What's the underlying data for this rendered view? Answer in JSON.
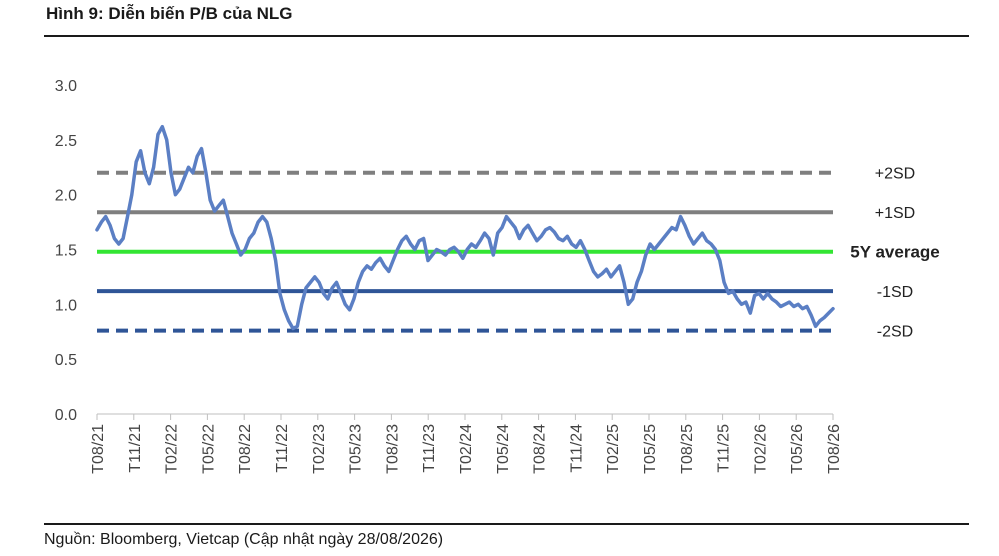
{
  "header": {
    "title": "Hình 9: Diễn biến P/B của NLG"
  },
  "footer": {
    "source": "Nguồn: Bloomberg, Vietcap (Cập nhật ngày 28/08/2026)"
  },
  "chart_data": {
    "type": "line",
    "title": "Hình 9: Diễn biến P/B của NLG",
    "ylim": [
      0,
      3
    ],
    "yticks": [
      "0.0",
      "0.5",
      "1.0",
      "1.5",
      "2.0",
      "2.5",
      "3.0"
    ],
    "grid": false,
    "xticks": [
      "T08/21",
      "T11/21",
      "T02/22",
      "T05/22",
      "T08/22",
      "T11/22",
      "T02/23",
      "T05/23",
      "T08/23",
      "T11/23",
      "T02/24",
      "T05/24",
      "T08/24",
      "T11/24",
      "T02/25",
      "T05/25",
      "T08/25",
      "T11/25",
      "T02/26",
      "T05/26",
      "T08/26"
    ],
    "series": [
      {
        "values": [
          1.68,
          1.75,
          1.8,
          1.72,
          1.6,
          1.55,
          1.6,
          1.8,
          2.0,
          2.3,
          2.4,
          2.2,
          2.1,
          2.25,
          2.55,
          2.62,
          2.5,
          2.2,
          2.0,
          2.05,
          2.15,
          2.25,
          2.2,
          2.35,
          2.42,
          2.2,
          1.95,
          1.85,
          1.9,
          1.95,
          1.8,
          1.65,
          1.55,
          1.45,
          1.5,
          1.6,
          1.65,
          1.75,
          1.8,
          1.75,
          1.6,
          1.4,
          1.1,
          0.95,
          0.85,
          0.78,
          0.8,
          1.0,
          1.15,
          1.2,
          1.25,
          1.2,
          1.1,
          1.05,
          1.15,
          1.2,
          1.1,
          1.0,
          0.95,
          1.05,
          1.2,
          1.3,
          1.35,
          1.32,
          1.38,
          1.42,
          1.35,
          1.3,
          1.4,
          1.5,
          1.58,
          1.62,
          1.55,
          1.5,
          1.58,
          1.6,
          1.4,
          1.45,
          1.5,
          1.48,
          1.45,
          1.5,
          1.52,
          1.48,
          1.42,
          1.5,
          1.55,
          1.52,
          1.58,
          1.65,
          1.6,
          1.45,
          1.65,
          1.7,
          1.8,
          1.75,
          1.7,
          1.6,
          1.68,
          1.72,
          1.65,
          1.58,
          1.62,
          1.68,
          1.7,
          1.66,
          1.6,
          1.58,
          1.62,
          1.55,
          1.52,
          1.58,
          1.5,
          1.4,
          1.3,
          1.25,
          1.28,
          1.32,
          1.25,
          1.3,
          1.35,
          1.2,
          1.0,
          1.05,
          1.2,
          1.3,
          1.45,
          1.55,
          1.5,
          1.55,
          1.6,
          1.65,
          1.7,
          1.68,
          1.8,
          1.72,
          1.62,
          1.55,
          1.6,
          1.65,
          1.58,
          1.55,
          1.5,
          1.4,
          1.2,
          1.1,
          1.12,
          1.05,
          1.0,
          1.02,
          0.92,
          1.08,
          1.1,
          1.05,
          1.1,
          1.05,
          1.02,
          0.98,
          1.0,
          1.02,
          0.98,
          1.0,
          0.96,
          0.98,
          0.9,
          0.8,
          0.85,
          0.88,
          0.92,
          0.96
        ]
      }
    ],
    "levels": [
      {
        "label": "+2SD",
        "value": 2.2,
        "color": "#7f7f7f",
        "dashed": true,
        "bold": false
      },
      {
        "label": "+1SD",
        "value": 1.84,
        "color": "#7f7f7f",
        "dashed": false,
        "bold": false
      },
      {
        "label": "5Y average",
        "value": 1.48,
        "color": "#33e533",
        "dashed": false,
        "bold": true
      },
      {
        "label": "-1SD",
        "value": 1.12,
        "color": "#2f5597",
        "dashed": false,
        "bold": false
      },
      {
        "label": "-2SD",
        "value": 0.76,
        "color": "#2f5597",
        "dashed": true,
        "bold": false
      }
    ],
    "colors": {
      "series": "#5b7fc4"
    }
  }
}
